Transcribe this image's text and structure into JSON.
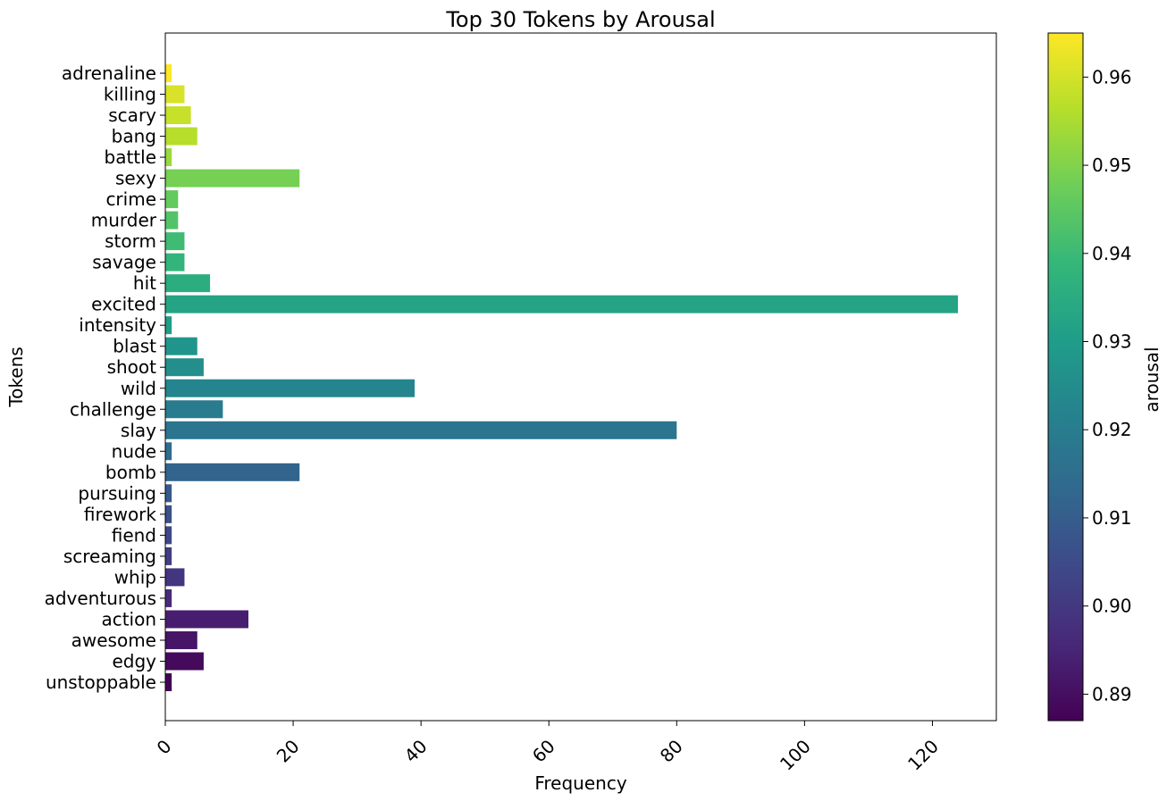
{
  "chart_data": {
    "type": "bar",
    "orientation": "horizontal",
    "title": "Top 30 Tokens by Arousal",
    "xlabel": "Frequency",
    "ylabel": "Tokens",
    "xlim": [
      0,
      130
    ],
    "xticks": [
      0,
      20,
      40,
      60,
      80,
      100,
      120
    ],
    "grid": false,
    "categories": [
      "adrenaline",
      "killing",
      "scary",
      "bang",
      "battle",
      "sexy",
      "crime",
      "murder",
      "storm",
      "savage",
      "hit",
      "excited",
      "intensity",
      "blast",
      "shoot",
      "wild",
      "challenge",
      "slay",
      "nude",
      "bomb",
      "pursuing",
      "firework",
      "fiend",
      "screaming",
      "whip",
      "adventurous",
      "action",
      "awesome",
      "edgy",
      "unstoppable"
    ],
    "values": [
      1,
      3,
      4,
      5,
      1,
      21,
      2,
      2,
      3,
      3,
      7,
      124,
      1,
      5,
      6,
      39,
      9,
      80,
      1,
      21,
      1,
      1,
      1,
      1,
      3,
      1,
      13,
      5,
      6,
      1
    ],
    "color_values": [
      0.965,
      0.9605,
      0.9585,
      0.9565,
      0.953,
      0.9485,
      0.946,
      0.9435,
      0.9405,
      0.938,
      0.9355,
      0.9325,
      0.93,
      0.9275,
      0.9255,
      0.9225,
      0.9195,
      0.9175,
      0.9145,
      0.912,
      0.909,
      0.9065,
      0.904,
      0.9015,
      0.899,
      0.8965,
      0.8935,
      0.8915,
      0.889,
      0.887
    ],
    "colorbar": {
      "label": "arousal",
      "colormap": "viridis",
      "range": [
        0.887,
        0.965
      ],
      "ticks": [
        0.89,
        0.9,
        0.91,
        0.92,
        0.93,
        0.94,
        0.95,
        0.96
      ],
      "tick_labels": [
        "0.89",
        "0.90",
        "0.91",
        "0.92",
        "0.93",
        "0.94",
        "0.95",
        "0.96"
      ]
    }
  }
}
